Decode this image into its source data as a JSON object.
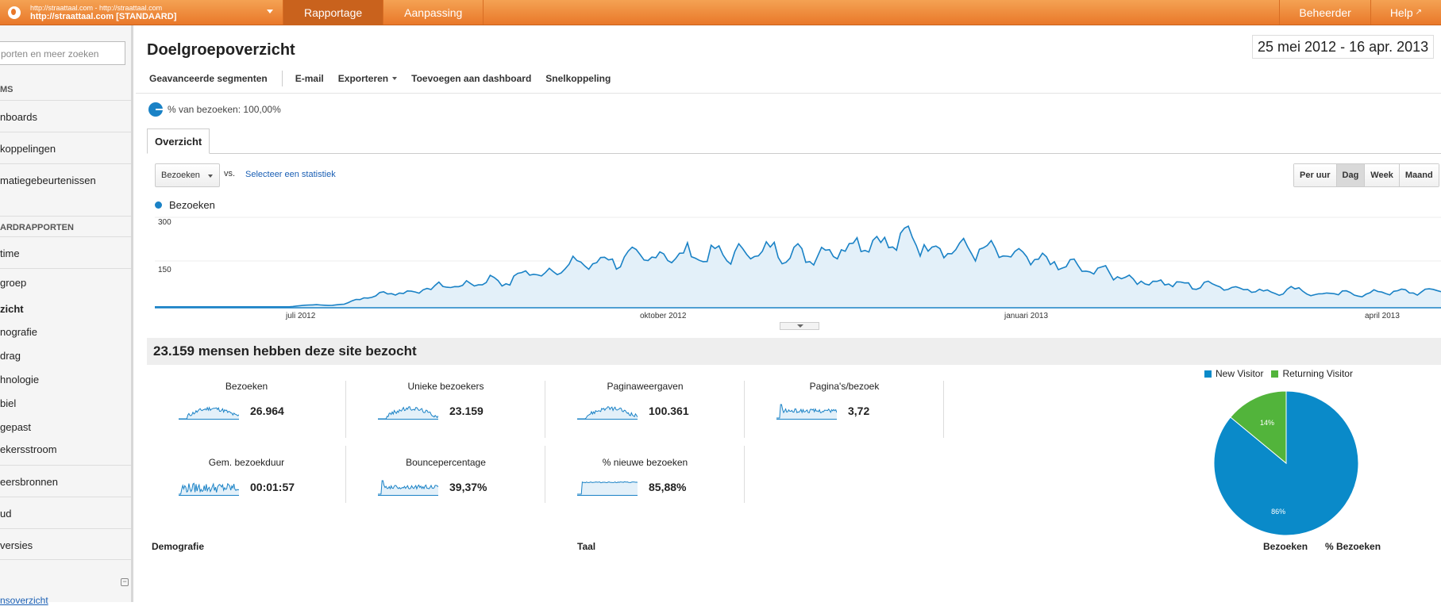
{
  "topbar": {
    "site_small": "http://straattaal.com - http://straattaal.com",
    "site_main": "http://straattaal.com [STANDAARD]",
    "tabs": [
      "Rapportage",
      "Aanpassing"
    ],
    "right_tabs": [
      "Beheerder",
      "Help"
    ],
    "accent": "#e9782a"
  },
  "sidebar": {
    "search_placeholder": "porten en meer zoeken",
    "head1": "MS",
    "items_top": [
      "nboards",
      "koppelingen",
      "matiegebeurtenissen"
    ],
    "head2": "ARDRAPPORTEN",
    "realtime": "time",
    "sub": [
      "groep",
      "zicht",
      "nografie",
      "drag",
      "hnologie",
      "biel",
      "gepast",
      "ekersstroom"
    ],
    "items_bottom": [
      "eersbronnen",
      "ud",
      "versies"
    ],
    "footer_link": "nsoverzicht"
  },
  "main": {
    "title": "Doelgroepoverzicht",
    "date_range": "25 mei 2012 - 16 apr. 2013",
    "toolbar": [
      "Geavanceerde segmenten",
      "E-mail",
      "Exporteren",
      "Toevoegen aan dashboard",
      "Snelkoppeling"
    ],
    "segment": "% van bezoeken: 100,00%",
    "tab": "Overzicht",
    "metric": "Bezoeken",
    "vs": "vs.",
    "select_stat": "Selecteer een statistiek",
    "time_buttons": [
      "Per uur",
      "Dag",
      "Week",
      "Maand"
    ],
    "summary": "23.159 mensen hebben deze site bezocht",
    "stats": [
      {
        "label": "Bezoeken",
        "value": "26.964"
      },
      {
        "label": "Unieke bezoekers",
        "value": "23.159"
      },
      {
        "label": "Paginaweergaven",
        "value": "100.361"
      },
      {
        "label": "Pagina's/bezoek",
        "value": "3,72"
      },
      {
        "label": "Gem. bezoekduur",
        "value": "00:01:57"
      },
      {
        "label": "Bouncepercentage",
        "value": "39,37%"
      },
      {
        "label": "% nieuwe bezoeken",
        "value": "85,88%"
      }
    ],
    "bottom_headers": [
      "Demografie",
      "Taal",
      "Bezoeken",
      "% Bezoeken"
    ]
  },
  "chart_data": [
    {
      "type": "area",
      "series": [
        {
          "name": "Bezoeken",
          "color": "#1a82c6"
        }
      ],
      "y_ticks": [
        "300",
        "150"
      ],
      "ylim": [
        0,
        300
      ],
      "x_ticks": [
        "juli 2012",
        "oktober 2012",
        "januari 2013",
        "april 2013"
      ],
      "x_range": [
        "2012-05-25",
        "2013-04-16"
      ],
      "profile": [
        [
          0,
          3
        ],
        [
          30,
          3
        ],
        [
          33,
          8
        ],
        [
          36,
          10
        ],
        [
          39,
          7
        ],
        [
          42,
          14
        ],
        [
          45,
          25
        ],
        [
          48,
          38
        ],
        [
          51,
          45
        ],
        [
          54,
          52
        ],
        [
          57,
          48
        ],
        [
          60,
          62
        ],
        [
          63,
          68
        ],
        [
          66,
          75
        ],
        [
          69,
          70
        ],
        [
          72,
          85
        ],
        [
          75,
          92
        ],
        [
          78,
          80
        ],
        [
          81,
          105
        ],
        [
          84,
          118
        ],
        [
          87,
          110
        ],
        [
          90,
          132
        ],
        [
          93,
          140
        ],
        [
          96,
          145
        ],
        [
          99,
          150
        ],
        [
          102,
          160
        ],
        [
          105,
          155
        ],
        [
          108,
          170
        ],
        [
          111,
          162
        ],
        [
          114,
          175
        ],
        [
          117,
          168
        ],
        [
          120,
          178
        ],
        [
          123,
          165
        ],
        [
          126,
          180
        ],
        [
          129,
          172
        ],
        [
          132,
          185
        ],
        [
          135,
          178
        ],
        [
          138,
          190
        ],
        [
          141,
          182
        ],
        [
          144,
          170
        ],
        [
          147,
          175
        ],
        [
          150,
          185
        ],
        [
          153,
          198
        ],
        [
          156,
          210
        ],
        [
          159,
          225
        ],
        [
          162,
          205
        ],
        [
          165,
          218
        ],
        [
          168,
          232
        ],
        [
          171,
          210
        ],
        [
          174,
          188
        ],
        [
          177,
          200
        ],
        [
          180,
          185
        ],
        [
          183,
          195
        ],
        [
          186,
          180
        ],
        [
          189,
          172
        ],
        [
          192,
          165
        ],
        [
          195,
          158
        ],
        [
          198,
          150
        ],
        [
          201,
          140
        ],
        [
          204,
          135
        ],
        [
          207,
          125
        ],
        [
          210,
          120
        ],
        [
          213,
          115
        ],
        [
          216,
          95
        ],
        [
          219,
          90
        ],
        [
          222,
          80
        ],
        [
          225,
          85
        ],
        [
          228,
          75
        ],
        [
          231,
          70
        ],
        [
          234,
          78
        ],
        [
          237,
          72
        ],
        [
          240,
          65
        ],
        [
          243,
          60
        ],
        [
          246,
          55
        ],
        [
          249,
          50
        ],
        [
          252,
          58
        ],
        [
          255,
          62
        ],
        [
          258,
          40
        ],
        [
          261,
          45
        ],
        [
          264,
          50
        ],
        [
          267,
          42
        ],
        [
          270,
          48
        ],
        [
          273,
          50
        ],
        [
          276,
          55
        ],
        [
          279,
          48
        ],
        [
          282,
          55
        ],
        [
          286,
          55
        ]
      ]
    },
    {
      "type": "pie",
      "slices": [
        {
          "label": "New Visitor",
          "value": 86,
          "color": "#0a8ac9",
          "text": "86%"
        },
        {
          "label": "Returning Visitor",
          "value": 14,
          "color": "#52b43b",
          "text": "14%"
        }
      ]
    }
  ]
}
